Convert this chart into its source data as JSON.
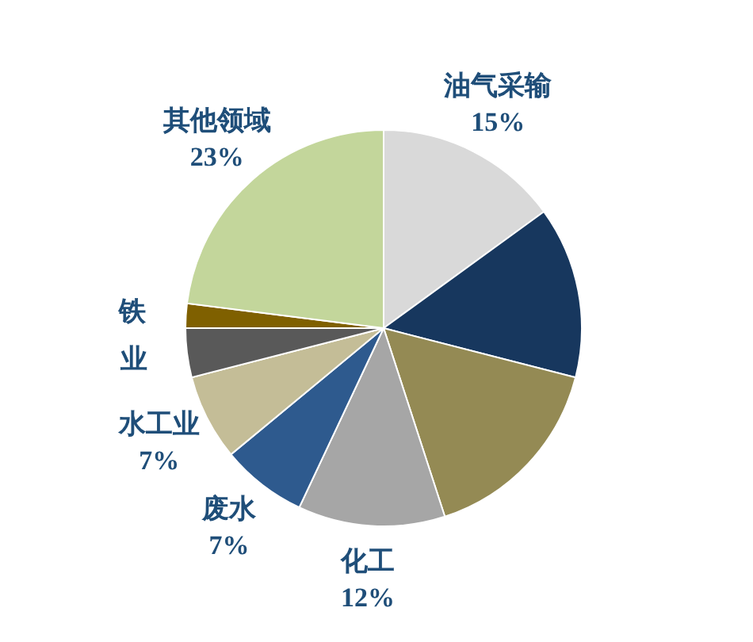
{
  "chart_data": {
    "type": "pie",
    "categories": [
      "油气采输",
      null,
      null,
      "化工",
      "废水",
      "水工业",
      "业",
      "铁",
      "其他领域"
    ],
    "values": [
      15,
      14,
      16,
      12,
      7,
      7,
      4,
      2,
      23
    ],
    "value_labels": [
      "15%",
      null,
      null,
      "12%",
      "7%",
      "7%",
      null,
      null,
      "23%"
    ],
    "colors": [
      "#d9d9d9",
      "#17375e",
      "#948a54",
      "#a6a6a6",
      "#2e5a8e",
      "#c4bd97",
      "#595959",
      "#7f6000",
      "#c3d69b"
    ],
    "legend": false
  }
}
